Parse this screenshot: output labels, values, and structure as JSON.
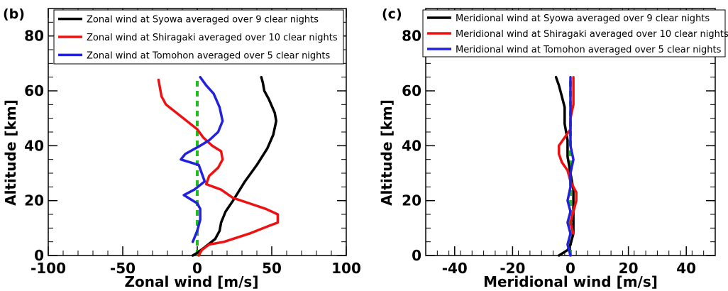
{
  "chart_data": [
    {
      "type": "line",
      "panel_label": "(b)",
      "xlabel": "Zonal wind [m/s]",
      "ylabel": "Altitude [km]",
      "xlim": [
        -100,
        100
      ],
      "ylim": [
        0,
        90
      ],
      "x_ticks": [
        -100,
        -50,
        0,
        50,
        100
      ],
      "y_ticks": [
        0,
        20,
        40,
        60,
        80
      ],
      "legend_position": "top-left",
      "reference_line": {
        "x": 0,
        "color": "#22bb22",
        "style": "dashed"
      },
      "series": [
        {
          "name": "Zonal wind at Syowa averaged over 9 clear nights",
          "color": "#000000",
          "points": [
            [
              -3,
              0
            ],
            [
              0,
              1
            ],
            [
              5,
              3
            ],
            [
              12,
              6
            ],
            [
              15,
              9
            ],
            [
              16,
              12
            ],
            [
              19,
              16
            ],
            [
              24,
              20
            ],
            [
              32,
              27
            ],
            [
              40,
              33
            ],
            [
              47,
              39
            ],
            [
              51,
              44
            ],
            [
              53,
              49
            ],
            [
              52,
              52
            ],
            [
              48,
              57
            ],
            [
              45,
              60
            ],
            [
              44,
              63
            ],
            [
              43,
              65
            ]
          ]
        },
        {
          "name": "Zonal wind at Shiragaki averaged over 10 clear nights",
          "color": "#ee1111",
          "points": [
            [
              1,
              0
            ],
            [
              3,
              2
            ],
            [
              8,
              4
            ],
            [
              18,
              5
            ],
            [
              35,
              8
            ],
            [
              49,
              11
            ],
            [
              54,
              12
            ],
            [
              54,
              15
            ],
            [
              46,
              17
            ],
            [
              35,
              19
            ],
            [
              24,
              21
            ],
            [
              16,
              24
            ],
            [
              6,
              26
            ],
            [
              8,
              29
            ],
            [
              14,
              32
            ],
            [
              17,
              35
            ],
            [
              16,
              38
            ],
            [
              10,
              40
            ],
            [
              4,
              43
            ],
            [
              0,
              46
            ],
            [
              -7,
              49
            ],
            [
              -14,
              52
            ],
            [
              -21,
              55
            ],
            [
              -24,
              58
            ],
            [
              -25,
              61
            ],
            [
              -26,
              64
            ]
          ]
        },
        {
          "name": "Zonal wind at Tomohon averaged over 5 clear nights",
          "color": "#2222dd",
          "points": [
            [
              -3,
              5
            ],
            [
              0,
              9
            ],
            [
              2,
              13
            ],
            [
              2,
              17
            ],
            [
              0,
              19
            ],
            [
              -9,
              22
            ],
            [
              -2,
              24
            ],
            [
              5,
              27
            ],
            [
              3,
              30
            ],
            [
              1,
              33
            ],
            [
              -11,
              35
            ],
            [
              -8,
              37
            ],
            [
              2,
              40
            ],
            [
              8,
              42
            ],
            [
              14,
              45
            ],
            [
              17,
              49
            ],
            [
              15,
              54
            ],
            [
              11,
              59
            ],
            [
              6,
              62
            ],
            [
              2,
              65
            ]
          ]
        }
      ]
    },
    {
      "type": "line",
      "panel_label": "(c)",
      "xlabel": "Meridional wind [m/s]",
      "ylabel": "Altitude [km]",
      "xlim": [
        -50,
        50
      ],
      "ylim": [
        0,
        90
      ],
      "x_ticks": [
        -40,
        -20,
        0,
        20,
        40
      ],
      "y_ticks": [
        0,
        20,
        40,
        60,
        80
      ],
      "legend_position": "top-left",
      "reference_line": {
        "x": 0,
        "color": "#22bb22",
        "style": "dashed"
      },
      "series": [
        {
          "name": "Meridional wind at Syowa averaged over 9 clear nights",
          "color": "#000000",
          "points": [
            [
              -4,
              0
            ],
            [
              -1,
              2
            ],
            [
              0,
              4
            ],
            [
              1,
              8
            ],
            [
              1,
              12
            ],
            [
              1,
              18
            ],
            [
              1,
              24
            ],
            [
              0,
              30
            ],
            [
              -1,
              36
            ],
            [
              -1,
              42
            ],
            [
              -2,
              48
            ],
            [
              -2,
              54
            ],
            [
              -3,
              58
            ],
            [
              -4,
              62
            ],
            [
              -5,
              65
            ]
          ]
        },
        {
          "name": "Meridional wind at Shiragaki averaged over 10 clear nights",
          "color": "#ee1111",
          "points": [
            [
              1,
              8
            ],
            [
              0,
              12
            ],
            [
              1,
              16
            ],
            [
              2,
              20
            ],
            [
              2,
              23
            ],
            [
              0,
              27
            ],
            [
              -1,
              31
            ],
            [
              -3,
              34
            ],
            [
              -4,
              37
            ],
            [
              -4,
              40
            ],
            [
              -2,
              43
            ],
            [
              0,
              46
            ],
            [
              0,
              50
            ],
            [
              1,
              55
            ],
            [
              1,
              60
            ],
            [
              1,
              65
            ]
          ]
        },
        {
          "name": "Meridional wind at Tomohon averaged over 5 clear nights",
          "color": "#2222dd",
          "points": [
            [
              0,
              0
            ],
            [
              -1,
              4
            ],
            [
              0,
              8
            ],
            [
              -1,
              12
            ],
            [
              0,
              16
            ],
            [
              -1,
              20
            ],
            [
              0,
              25
            ],
            [
              0,
              30
            ],
            [
              1,
              35
            ],
            [
              0,
              40
            ],
            [
              0,
              45
            ],
            [
              0,
              50
            ],
            [
              0,
              55
            ],
            [
              0,
              60
            ],
            [
              0,
              65
            ]
          ]
        }
      ]
    }
  ]
}
